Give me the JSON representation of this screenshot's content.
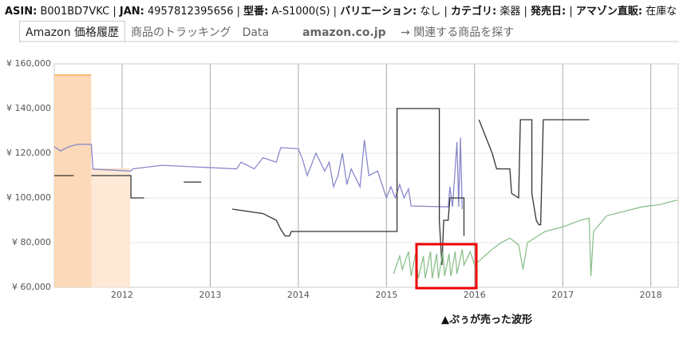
{
  "header": {
    "items": [
      {
        "label": "ASIN:",
        "value": "B001BD7VKC"
      },
      {
        "label": "JAN:",
        "value": "4957812395656"
      },
      {
        "label": "型番:",
        "value": "A-S1000(S)"
      },
      {
        "label": "バリエーション:",
        "value": "なし"
      },
      {
        "label": "カテゴリ:",
        "value": "楽器"
      },
      {
        "label": "発売日:"
      },
      {
        "label": "アマゾン直販:",
        "value": "在庫なし"
      }
    ]
  },
  "tabs": [
    "Amazon 価格履歴",
    "商品のトラッキング",
    "Data"
  ],
  "logo": "amazon.co.jp",
  "link": "→ 関連する商品を探す",
  "chart_data": {
    "type": "line",
    "annotation": "▲ぷぅが売った波形",
    "xlim": [
      2011.23,
      2018.32
    ],
    "xticks": [
      2012,
      2013,
      2014,
      2015,
      2016,
      2017,
      2018
    ],
    "ylim": [
      60000,
      160000
    ],
    "yticks": [
      {
        "value": 60000,
        "label": "¥ 60,000"
      },
      {
        "value": 80000,
        "label": "¥ 80,000"
      },
      {
        "value": 100000,
        "label": "¥ 100,000"
      },
      {
        "value": 120000,
        "label": "¥ 120,000"
      },
      {
        "value": 140000,
        "label": "¥ 140,000"
      },
      {
        "value": 160000,
        "label": "¥ 160,000"
      }
    ],
    "grid": true,
    "series": [
      {
        "color": "#f5d9bf",
        "fill": "#fde9d6",
        "x": [
          2011.65,
          2012.09
        ],
        "values": [
          113000,
          113000
        ]
      },
      {
        "color": "#f0a030",
        "fill": "#fcd9b8",
        "x": [
          2011.23,
          2011.65
        ],
        "values": [
          155000,
          155000
        ]
      },
      {
        "color": "#8888cc",
        "x": [
          2011.23,
          2011.3,
          2011.4,
          2011.5,
          2011.65,
          2011.67,
          2012.1,
          2012.12,
          2012.45,
          2013.3,
          2013.35,
          2013.5,
          2013.6,
          2013.75,
          2013.8,
          2014.0,
          2014.05,
          2014.1,
          2014.2,
          2014.3,
          2014.35,
          2014.4,
          2014.45,
          2014.5,
          2014.55,
          2014.6,
          2014.7,
          2014.75,
          2014.8,
          2014.9,
          2015.0,
          2015.05,
          2015.1,
          2015.15,
          2015.2,
          2015.25,
          2015.28,
          2015.7,
          2015.72,
          2015.75,
          2015.8,
          2015.82,
          2015.84,
          2015.86
        ],
        "values": [
          123000,
          121000,
          123000,
          124000,
          124000,
          112900,
          112000,
          113000,
          114600,
          113000,
          116000,
          113000,
          118000,
          116000,
          122500,
          122000,
          117000,
          110000,
          120000,
          112000,
          116000,
          105000,
          110000,
          120000,
          106000,
          113000,
          105000,
          126000,
          110000,
          112000,
          100000,
          105000,
          100000,
          106000,
          100000,
          104000,
          96400,
          96000,
          105000,
          96000,
          125000,
          96000,
          127000,
          95000
        ]
      },
      {
        "color": "#333333",
        "x": [
          2011.23,
          2011.45,
          2011.46,
          2011.65,
          2012.1,
          2012.1,
          2012.25,
          2012.26,
          2012.7,
          2012.9,
          2012.91,
          2013.25,
          2013.6,
          2013.75,
          2013.8,
          2013.85,
          2013.9,
          2013.92,
          2015.12,
          2015.12,
          2015.6,
          2015.6,
          2015.63,
          2015.65,
          2015.7,
          2015.72,
          2015.88,
          2015.88,
          2015.9,
          2016.05,
          2016.1,
          2016.2,
          2016.25,
          2016.4,
          2016.42,
          2016.5,
          2016.52,
          2016.65,
          2016.65,
          2016.7,
          2016.73,
          2016.75,
          2016.78,
          2017.3
        ],
        "values": [
          110000,
          110000,
          null,
          110000,
          110000,
          100000,
          100000,
          null,
          107100,
          107100,
          null,
          95000,
          93000,
          90000,
          86000,
          83000,
          83000,
          85000,
          85000,
          140000,
          140000,
          90000,
          70000,
          90000,
          90000,
          100000,
          100000,
          83000,
          null,
          135000,
          130000,
          120000,
          113000,
          113000,
          102000,
          100000,
          135000,
          135000,
          102000,
          90000,
          88000,
          88000,
          135000,
          135000
        ]
      },
      {
        "color": "#8cc08c",
        "x": [
          2015.08,
          2015.15,
          2015.18,
          2015.25,
          2015.28,
          2015.33,
          2015.36,
          2015.42,
          2015.44,
          2015.5,
          2015.52,
          2015.57,
          2015.59,
          2015.64,
          2015.66,
          2015.71,
          2015.73,
          2015.78,
          2015.8,
          2015.86,
          2015.88,
          2015.95,
          2016.0,
          2016.2,
          2016.3,
          2016.4,
          2016.5,
          2016.55,
          2016.6,
          2016.8,
          2017.0,
          2017.2,
          2017.3,
          2017.32,
          2017.35,
          2017.5,
          2017.7,
          2017.9,
          2018.1,
          2018.3
        ],
        "values": [
          66000,
          74000,
          68000,
          76000,
          65000,
          75000,
          64000,
          74000,
          64000,
          76000,
          64000,
          75000,
          64000,
          76000,
          65000,
          75000,
          65000,
          76000,
          66000,
          77000,
          70000,
          76000,
          70000,
          77000,
          80000,
          82000,
          79000,
          68000,
          80000,
          85000,
          87000,
          90000,
          91000,
          65000,
          85000,
          92000,
          94000,
          96000,
          97000,
          99000
        ]
      }
    ]
  }
}
